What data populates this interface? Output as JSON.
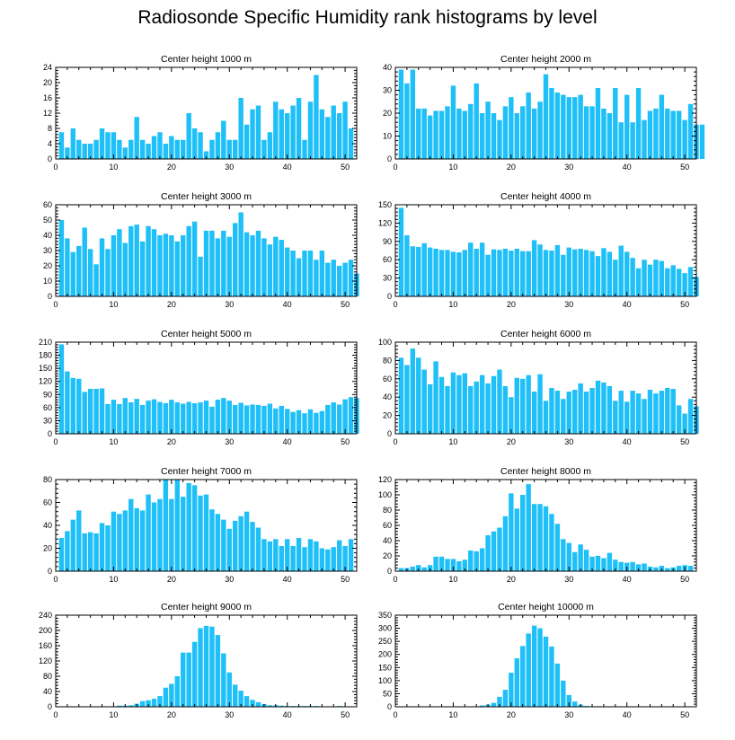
{
  "title": "Radiosonde Specific Humidity rank histograms by level",
  "colors": {
    "bar": "#1ec0f7",
    "axis": "#000000"
  },
  "chart_data": [
    {
      "type": "bar",
      "title": "Center height 1000 m",
      "xlim": [
        0,
        52
      ],
      "ylim": [
        0,
        24
      ],
      "xticks": [
        0,
        10,
        20,
        30,
        40,
        50
      ],
      "yticks": [
        0,
        4,
        8,
        12,
        16,
        20,
        24
      ],
      "values": [
        7,
        3,
        8,
        5,
        4,
        4,
        5,
        8,
        7,
        7,
        5,
        3,
        5,
        11,
        5,
        4,
        6,
        7,
        4,
        6,
        5,
        5,
        12,
        8,
        7,
        2,
        5,
        7,
        10,
        5,
        5,
        16,
        9,
        13,
        14,
        5,
        7,
        15,
        13,
        12,
        14,
        16,
        5,
        15,
        22,
        13,
        11,
        14,
        12,
        15,
        8
      ]
    },
    {
      "type": "bar",
      "title": "Center height 2000 m",
      "xlim": [
        0,
        52
      ],
      "ylim": [
        0,
        40
      ],
      "xticks": [
        0,
        10,
        20,
        30,
        40,
        50
      ],
      "yticks": [
        0,
        10,
        20,
        30,
        40
      ],
      "values": [
        39,
        33,
        39,
        22,
        22,
        19,
        21,
        21,
        23,
        32,
        22,
        21,
        24,
        33,
        20,
        25,
        20,
        17,
        23,
        27,
        20,
        23,
        29,
        22,
        25,
        37,
        31,
        29,
        28,
        27,
        27,
        28,
        23,
        23,
        31,
        22,
        20,
        31,
        16,
        28,
        16,
        31,
        17,
        21,
        22,
        28,
        22,
        21,
        21,
        17,
        24,
        15,
        15
      ]
    },
    {
      "type": "bar",
      "title": "Center height 3000 m",
      "xlim": [
        0,
        52
      ],
      "ylim": [
        0,
        60
      ],
      "xticks": [
        0,
        10,
        20,
        30,
        40,
        50
      ],
      "yticks": [
        0,
        10,
        20,
        30,
        40,
        50,
        60
      ],
      "values": [
        50,
        38,
        29,
        33,
        45,
        31,
        21,
        38,
        31,
        40,
        44,
        35,
        46,
        47,
        36,
        46,
        44,
        40,
        41,
        40,
        36,
        40,
        46,
        49,
        26,
        43,
        43,
        38,
        43,
        39,
        48,
        55,
        42,
        40,
        43,
        38,
        34,
        39,
        37,
        32,
        30,
        25,
        30,
        30,
        24,
        30,
        22,
        24,
        20,
        22,
        24,
        15
      ]
    },
    {
      "type": "bar",
      "title": "Center height 4000 m",
      "xlim": [
        0,
        52
      ],
      "ylim": [
        0,
        150
      ],
      "xticks": [
        0,
        10,
        20,
        30,
        40,
        50
      ],
      "yticks": [
        0,
        30,
        60,
        90,
        120,
        150
      ],
      "values": [
        145,
        100,
        82,
        81,
        87,
        80,
        78,
        76,
        76,
        73,
        72,
        76,
        88,
        78,
        88,
        68,
        77,
        76,
        78,
        75,
        78,
        74,
        74,
        92,
        85,
        76,
        75,
        84,
        68,
        80,
        77,
        78,
        76,
        74,
        66,
        79,
        73,
        60,
        83,
        73,
        63,
        46,
        60,
        52,
        60,
        58,
        46,
        51,
        45,
        38,
        48,
        32
      ]
    },
    {
      "type": "bar",
      "title": "Center height 5000 m",
      "xlim": [
        0,
        52
      ],
      "ylim": [
        0,
        210
      ],
      "xticks": [
        0,
        10,
        20,
        30,
        40,
        50
      ],
      "yticks": [
        0,
        30,
        60,
        90,
        120,
        150,
        180,
        210
      ],
      "values": [
        205,
        143,
        128,
        126,
        96,
        103,
        103,
        104,
        68,
        78,
        68,
        82,
        72,
        80,
        66,
        76,
        79,
        73,
        70,
        78,
        72,
        69,
        73,
        70,
        72,
        76,
        62,
        78,
        82,
        76,
        66,
        71,
        65,
        67,
        66,
        64,
        69,
        58,
        64,
        57,
        50,
        54,
        47,
        56,
        48,
        52,
        66,
        72,
        67,
        79,
        84,
        82
      ]
    },
    {
      "type": "bar",
      "title": "Center height 6000 m",
      "xlim": [
        0,
        52
      ],
      "ylim": [
        0,
        100
      ],
      "xticks": [
        0,
        10,
        20,
        30,
        40,
        50
      ],
      "yticks": [
        0,
        20,
        40,
        60,
        80,
        100
      ],
      "values": [
        83,
        75,
        93,
        83,
        70,
        54,
        79,
        62,
        52,
        67,
        64,
        66,
        52,
        57,
        64,
        55,
        63,
        70,
        52,
        40,
        61,
        60,
        64,
        46,
        65,
        36,
        50,
        47,
        38,
        46,
        48,
        55,
        46,
        50,
        58,
        56,
        52,
        36,
        47,
        35,
        47,
        44,
        38,
        48,
        44,
        47,
        50,
        49,
        31,
        22,
        38,
        30
      ]
    },
    {
      "type": "bar",
      "title": "Center height 7000 m",
      "xlim": [
        0,
        52
      ],
      "ylim": [
        0,
        80
      ],
      "xticks": [
        0,
        10,
        20,
        30,
        40,
        50
      ],
      "yticks": [
        0,
        20,
        40,
        60,
        80
      ],
      "values": [
        29,
        35,
        45,
        53,
        33,
        34,
        33,
        42,
        40,
        52,
        50,
        53,
        63,
        55,
        53,
        67,
        60,
        63,
        80,
        63,
        80,
        65,
        77,
        75,
        66,
        67,
        54,
        50,
        45,
        37,
        44,
        48,
        52,
        43,
        38,
        28,
        26,
        28,
        22,
        28,
        22,
        29,
        21,
        28,
        26,
        20,
        19,
        21,
        27,
        22,
        28
      ]
    },
    {
      "type": "bar",
      "title": "Center height 8000 m",
      "xlim": [
        0,
        52
      ],
      "ylim": [
        0,
        120
      ],
      "xticks": [
        0,
        10,
        20,
        30,
        40,
        50
      ],
      "yticks": [
        0,
        20,
        40,
        60,
        80,
        100,
        120
      ],
      "values": [
        4,
        4,
        6,
        8,
        5,
        8,
        19,
        19,
        16,
        16,
        13,
        15,
        27,
        26,
        30,
        47,
        52,
        57,
        72,
        102,
        82,
        100,
        114,
        88,
        88,
        85,
        75,
        62,
        42,
        37,
        25,
        35,
        28,
        19,
        20,
        17,
        24,
        15,
        12,
        11,
        12,
        9,
        10,
        6,
        5,
        7,
        4,
        5,
        7,
        8,
        7
      ]
    },
    {
      "type": "bar",
      "title": "Center height 9000 m",
      "xlim": [
        0,
        52
      ],
      "ylim": [
        0,
        240
      ],
      "xticks": [
        0,
        10,
        20,
        30,
        40,
        50
      ],
      "yticks": [
        0,
        40,
        80,
        120,
        160,
        200,
        240
      ],
      "values": [
        0,
        0,
        0,
        0,
        0,
        0,
        0,
        0,
        0,
        0,
        3,
        3,
        4,
        8,
        15,
        17,
        21,
        28,
        50,
        60,
        80,
        142,
        142,
        170,
        206,
        212,
        210,
        188,
        140,
        90,
        58,
        42,
        28,
        18,
        12,
        7,
        4,
        4,
        3,
        2,
        2,
        2,
        2,
        2,
        2,
        1,
        1,
        1,
        2,
        1,
        1
      ]
    },
    {
      "type": "bar",
      "title": "Center height 10000 m",
      "xlim": [
        0,
        52
      ],
      "ylim": [
        0,
        350
      ],
      "xticks": [
        0,
        10,
        20,
        30,
        40,
        50
      ],
      "yticks": [
        0,
        50,
        100,
        150,
        200,
        250,
        300,
        350
      ],
      "values": [
        0,
        0,
        0,
        0,
        0,
        0,
        0,
        0,
        0,
        0,
        0,
        0,
        0,
        2,
        5,
        8,
        15,
        38,
        65,
        130,
        185,
        232,
        280,
        310,
        300,
        268,
        230,
        165,
        100,
        45,
        20,
        8,
        3,
        2,
        2,
        1,
        1,
        1,
        1,
        1,
        1,
        1,
        1,
        0,
        0,
        0,
        0,
        0,
        0,
        0,
        0
      ]
    }
  ]
}
